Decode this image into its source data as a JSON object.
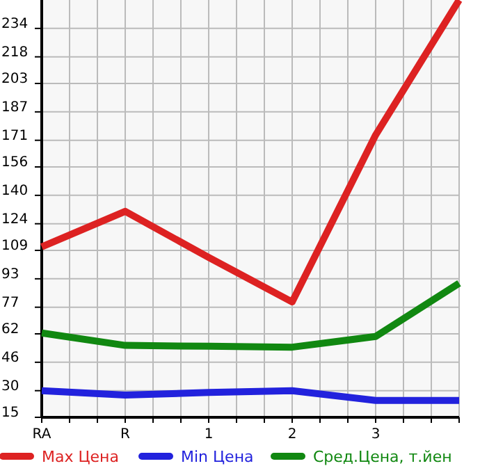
{
  "chart_data": {
    "type": "line",
    "categories": [
      "RA",
      "R",
      "1",
      "2",
      "3",
      null
    ],
    "series": [
      {
        "name": "Max Цена",
        "color": "#dd2222",
        "values": [
          111,
          131,
          105,
          80,
          174,
          250
        ]
      },
      {
        "name": "Min Цена",
        "color": "#2222dd",
        "values": [
          30,
          27.5,
          29,
          30,
          24.5,
          24.5
        ]
      },
      {
        "name": "Сред.Цена, т.йен",
        "color": "#118811",
        "values": [
          62.5,
          55.5,
          55,
          54.5,
          60.5,
          90.5
        ]
      }
    ],
    "ylim": [
      15,
      250
    ],
    "yticks": [
      15,
      30,
      46,
      62,
      77,
      93,
      109,
      124,
      140,
      156,
      171,
      187,
      203,
      218,
      234
    ],
    "grid": true,
    "legend": "bottom",
    "marker": "none",
    "line_style": "solid"
  }
}
